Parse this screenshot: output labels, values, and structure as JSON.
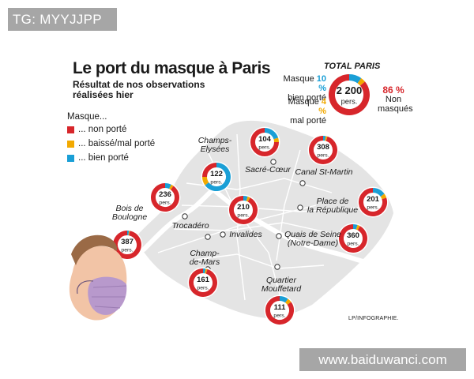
{
  "watermarks": {
    "top": "TG: MYYJJPP",
    "bottom": "www.baiduwanci.com"
  },
  "title": "Le port du masque à Paris",
  "subtitle_line1": "Résultat de nos observations",
  "subtitle_line2": "réalisées hier",
  "legend": {
    "title": "Masque...",
    "items": [
      {
        "label": "... non porté",
        "color": "#d7262b"
      },
      {
        "label": "... baissé/mal porté",
        "color": "#f2a900"
      },
      {
        "label": "... bien porté",
        "color": "#1a9fd6"
      }
    ]
  },
  "colors": {
    "non": "#d7262b",
    "mal": "#f2a900",
    "bien": "#1a9fd6",
    "map_fill": "#e4e4e4",
    "river": "#ffffff"
  },
  "total": {
    "title": "TOTAL PARIS",
    "count": "2 200",
    "unit": "pers.",
    "bien_label_a": "Masque",
    "bien_pct": "10 %",
    "bien_label_b": "bien porté",
    "mal_label_a": "Masque",
    "mal_pct": "4 %",
    "mal_label_b": "mal porté",
    "non_pct": "86 %",
    "non_label_a": "Non",
    "non_label_b": "masqués",
    "shares": {
      "non": 86,
      "mal": 4,
      "bien": 10
    }
  },
  "locations": [
    {
      "name": "Champs-Elysées",
      "line1": "Champs-",
      "line2": "Elysées",
      "count": "122",
      "unit": "pers.",
      "shares": {
        "non": 25,
        "mal": 10,
        "bien": 65
      }
    },
    {
      "name": "Sacré-Cœur",
      "line1": "Sacré-Cœur",
      "line2": "",
      "count": "104",
      "unit": "pers.",
      "shares": {
        "non": 75,
        "mal": 5,
        "bien": 20
      }
    },
    {
      "name": "Canal St-Martin",
      "line1": "Canal St-Martin",
      "line2": "",
      "count": "308",
      "unit": "pers.",
      "shares": {
        "non": 95,
        "mal": 2,
        "bien": 3
      }
    },
    {
      "name": "Bois de Boulogne",
      "line1": "Bois de",
      "line2": "Boulogne",
      "count": "387",
      "unit": "pers.",
      "shares": {
        "non": 97,
        "mal": 1,
        "bien": 2
      }
    },
    {
      "name": "Trocadéro",
      "line1": "Trocadéro",
      "line2": "",
      "count": "236",
      "unit": "pers.",
      "shares": {
        "non": 90,
        "mal": 3,
        "bien": 7
      }
    },
    {
      "name": "Invalides",
      "line1": "Invalides",
      "line2": "",
      "count": "210",
      "unit": "pers.",
      "shares": {
        "non": 92,
        "mal": 3,
        "bien": 5
      }
    },
    {
      "name": "Place de la République",
      "line1": "Place de",
      "line2": "la République",
      "count": "201",
      "unit": "pers.",
      "shares": {
        "non": 80,
        "mal": 5,
        "bien": 15
      }
    },
    {
      "name": "Quais de Seine (Notre-Dame)",
      "line1": "Quais de Seine",
      "line2": "(Notre-Dame)",
      "count": "360",
      "unit": "pers.",
      "shares": {
        "non": 92,
        "mal": 3,
        "bien": 5
      }
    },
    {
      "name": "Champ-de-Mars",
      "line1": "Champ-",
      "line2": "de-Mars",
      "count": "161",
      "unit": "pers.",
      "shares": {
        "non": 95,
        "mal": 2,
        "bien": 3
      }
    },
    {
      "name": "Quartier Mouffetard",
      "line1": "Quartier",
      "line2": "Mouffetard",
      "count": "111",
      "unit": "pers.",
      "shares": {
        "non": 85,
        "mal": 5,
        "bien": 10
      }
    }
  ],
  "credit": "LP/INFOGRAPHIE."
}
